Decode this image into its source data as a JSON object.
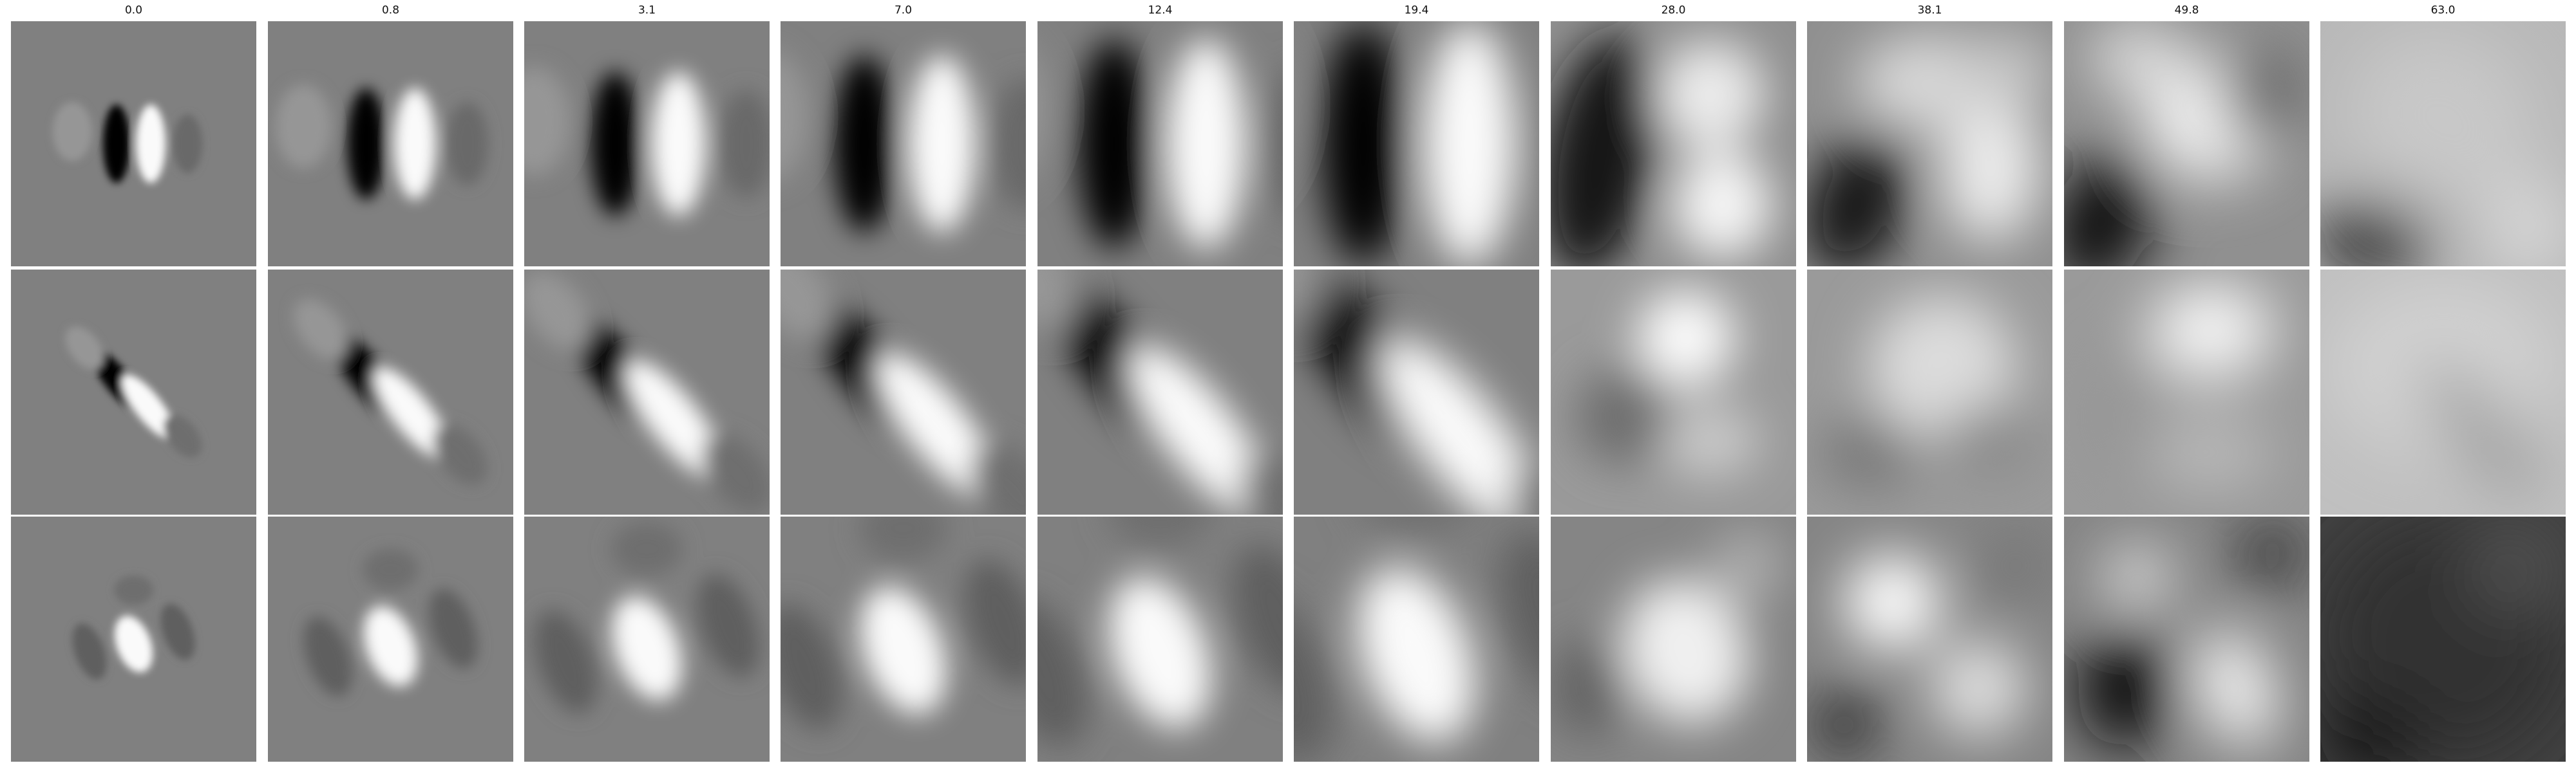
{
  "figure": {
    "column_titles": [
      "0.0",
      "0.8",
      "3.1",
      "7.0",
      "12.4",
      "19.4",
      "28.0",
      "38.1",
      "49.8",
      "63.0"
    ],
    "rows": 3,
    "colormap": "grayscale",
    "background": "#808080",
    "panel_descriptions_by_row": [
      "vertical dark-left / bright-right edge filter, blurring with increasing value",
      "diagonal dark / bright oriented filter, blurring with increasing value",
      "bright central blob with darker flanks, blurring with increasing value"
    ]
  }
}
